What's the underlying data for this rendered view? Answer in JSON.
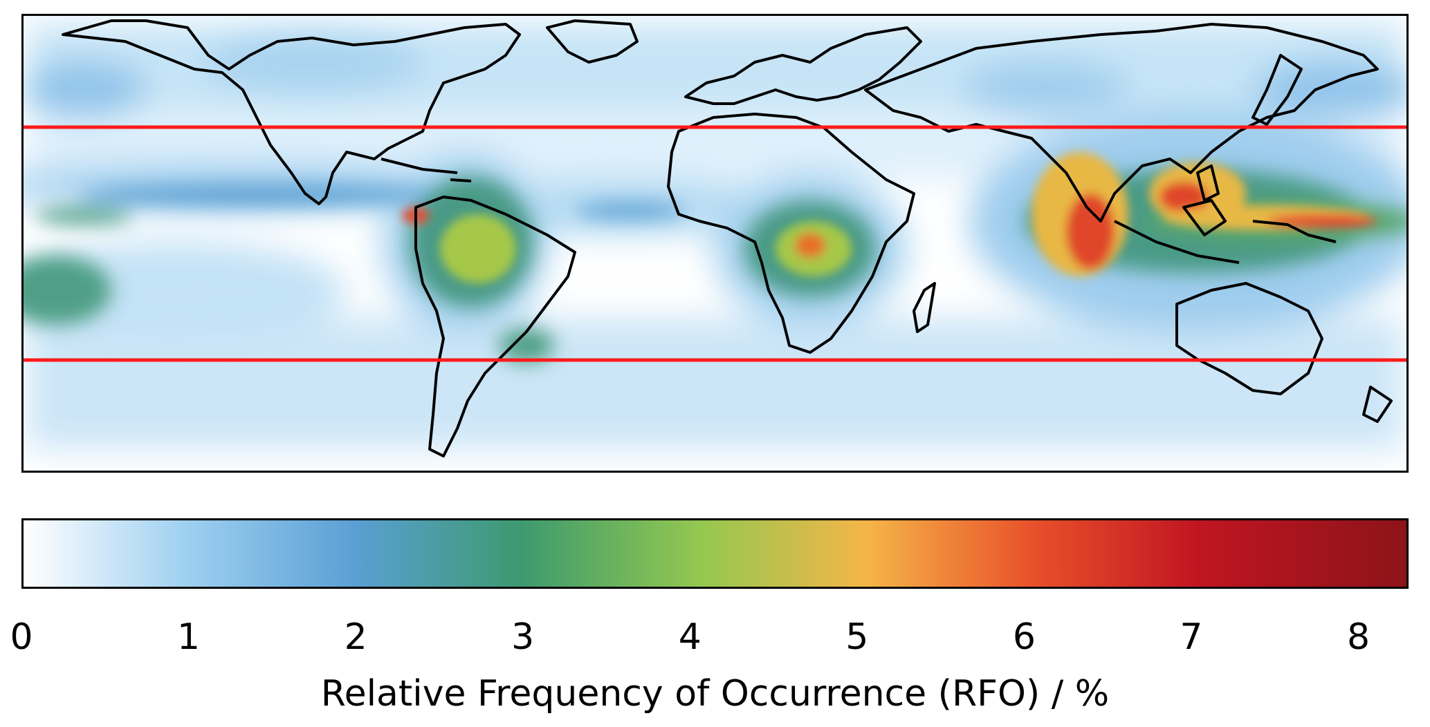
{
  "map": {
    "projection": "equirectangular",
    "coastlines": "black",
    "reference_lines": {
      "color": "#ff1a1a"
    }
  },
  "colorbar": {
    "label": "Relative Frequency of Occurrence (RFO) / %",
    "ticks": [
      "0",
      "1",
      "2",
      "3",
      "4",
      "5",
      "6",
      "7",
      "8"
    ],
    "tick_values": [
      0,
      1,
      2,
      3,
      4,
      5,
      6,
      7,
      8
    ],
    "range": [
      0,
      8.3
    ],
    "colors": [
      "#ffffff",
      "#9dcff0",
      "#5a9fd4",
      "#3d9a6e",
      "#94c850",
      "#f5b548",
      "#e8502a",
      "#c01522",
      "#8c1418"
    ]
  }
}
